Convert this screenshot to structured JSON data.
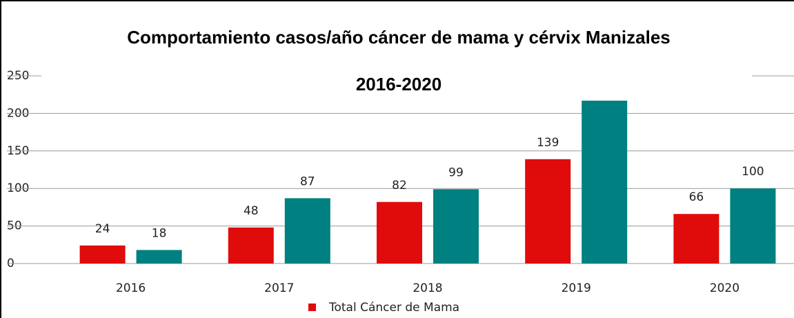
{
  "chart_data": {
    "type": "bar",
    "title": "Comportamiento casos/año cáncer de mama y cérvix Manizales",
    "subtitle": "2016-2020",
    "categories": [
      "2016",
      "2017",
      "2018",
      "2019",
      "2020"
    ],
    "series": [
      {
        "name": "Total Cáncer de Mama",
        "color": "#e00b0b",
        "values": [
          24,
          48,
          82,
          139,
          66
        ]
      },
      {
        "color": "#008080",
        "values": [
          18,
          87,
          99,
          217,
          100
        ],
        "value_labels": [
          "18",
          "87",
          "99",
          null,
          "100"
        ]
      }
    ],
    "ylim": [
      0,
      250
    ],
    "yticks": [
      0,
      50,
      100,
      150,
      200,
      250
    ],
    "grid": true
  }
}
